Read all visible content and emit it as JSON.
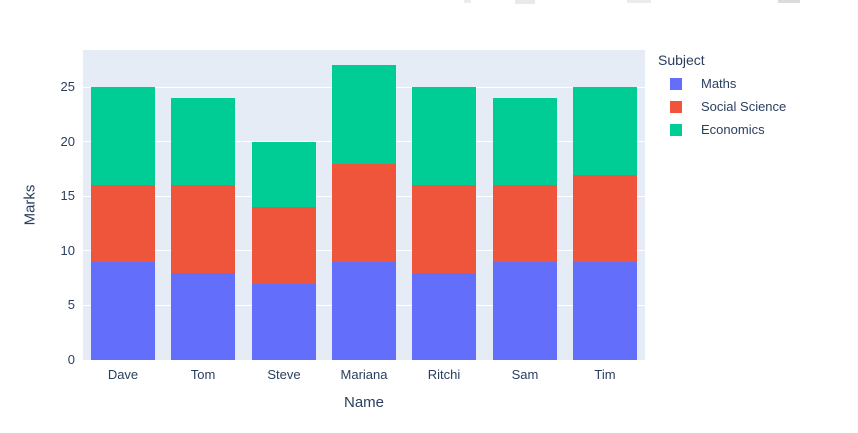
{
  "chart_data": {
    "type": "bar",
    "stacked": true,
    "categories": [
      "Dave",
      "Tom",
      "Steve",
      "Mariana",
      "Ritchi",
      "Sam",
      "Tim"
    ],
    "series": [
      {
        "name": "Maths",
        "color": "#636EFA",
        "values": [
          9,
          8,
          7,
          9,
          8,
          9,
          9
        ]
      },
      {
        "name": "Social Science",
        "color": "#EF553B",
        "values": [
          7,
          8,
          7,
          9,
          8,
          7,
          8
        ]
      },
      {
        "name": "Economics",
        "color": "#00CC96",
        "values": [
          9,
          8,
          6,
          9,
          9,
          8,
          8
        ]
      }
    ],
    "totals": [
      25,
      24,
      20,
      27,
      25,
      24,
      25
    ],
    "title": "",
    "xlabel": "Name",
    "ylabel": "Marks",
    "ylim": [
      0,
      28.42
    ],
    "yticks": [
      0,
      5,
      10,
      15,
      20,
      25
    ],
    "grid": true,
    "gridcolor": "#ffffff",
    "plot_bgcolor": "#E5ECF6",
    "paper_bgcolor": "#ffffff",
    "text_color": "#2A3F5F",
    "legend_title": "Subject",
    "legend_position": "right"
  }
}
